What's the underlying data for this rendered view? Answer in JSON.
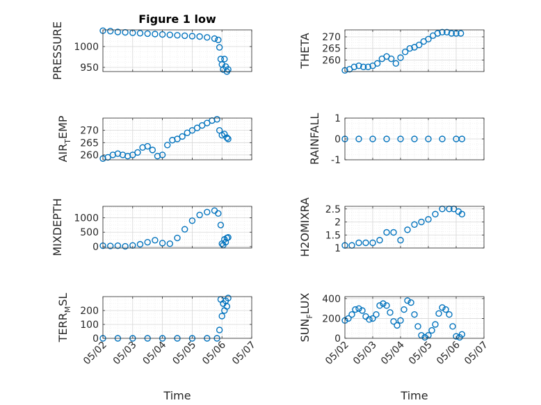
{
  "chart_data": [
    {
      "type": "scatter",
      "title": "Figure 1 low",
      "ylabel": "PRESSURE",
      "xlabel": "",
      "x_ticks": [
        "05/02",
        "05/03",
        "05/04",
        "05/05",
        "05/06",
        "05/07"
      ],
      "show_x_ticklabels": false,
      "xlim": [
        "05/02",
        "05/07"
      ],
      "ylim": [
        940,
        1040
      ],
      "y_ticks": [
        950,
        1000
      ],
      "grid": true,
      "series": [
        {
          "x": [
            "05/02 00:00",
            "05/02 06:00",
            "05/02 12:00",
            "05/02 18:00",
            "05/03 00:00",
            "05/03 06:00",
            "05/03 12:00",
            "05/03 18:00",
            "05/04 00:00",
            "05/04 06:00",
            "05/04 12:00",
            "05/04 18:00",
            "05/05 00:00",
            "05/05 06:00",
            "05/05 12:00",
            "05/05 18:00",
            "05/05 21:00",
            "05/05 22:00",
            "05/05 23:00",
            "05/06 00:00",
            "05/06 01:00",
            "05/06 02:00",
            "05/06 03:00",
            "05/06 04:00",
            "05/06 05:00"
          ],
          "y": [
            1038,
            1037,
            1035,
            1034,
            1033,
            1032,
            1031,
            1030,
            1029,
            1028,
            1027,
            1026,
            1025,
            1024,
            1022,
            1019,
            1016,
            998,
            970,
            957,
            945,
            970,
            952,
            940,
            945
          ]
        }
      ]
    },
    {
      "type": "scatter",
      "title": "",
      "ylabel": "THETA",
      "xlabel": "",
      "x_ticks": [
        "05/02",
        "05/03",
        "05/04",
        "05/05",
        "05/06",
        "05/07"
      ],
      "show_x_ticklabels": false,
      "xlim": [
        "05/02",
        "05/07"
      ],
      "ylim": [
        255,
        273
      ],
      "y_ticks": [
        260,
        265,
        270
      ],
      "grid": true,
      "series": [
        {
          "x": [
            "05/02 00:00",
            "05/02 04:00",
            "05/02 08:00",
            "05/02 12:00",
            "05/02 16:00",
            "05/02 20:00",
            "05/03 00:00",
            "05/03 04:00",
            "05/03 08:00",
            "05/03 12:00",
            "05/03 16:00",
            "05/03 20:00",
            "05/04 00:00",
            "05/04 04:00",
            "05/04 08:00",
            "05/04 12:00",
            "05/04 16:00",
            "05/04 20:00",
            "05/05 00:00",
            "05/05 04:00",
            "05/05 08:00",
            "05/05 12:00",
            "05/05 16:00",
            "05/05 20:00",
            "05/06 00:00",
            "05/06 04:00"
          ],
          "y": [
            255.5,
            256,
            257,
            257.5,
            257,
            257,
            257.5,
            258.5,
            260.5,
            261.5,
            260.5,
            258.5,
            261,
            263.5,
            265,
            265.5,
            266.5,
            268,
            269,
            270.5,
            271.5,
            272,
            272,
            271.5,
            271.5,
            271.5
          ]
        }
      ]
    },
    {
      "type": "scatter",
      "title": "",
      "ylabel": "AIR",
      "ylabel_sub": "T",
      "ylabel_rest": "EMP",
      "xlabel": "",
      "x_ticks": [
        "05/02",
        "05/03",
        "05/04",
        "05/05",
        "05/06",
        "05/07"
      ],
      "show_x_ticklabels": false,
      "xlim": [
        "05/02",
        "05/07"
      ],
      "ylim": [
        258,
        275
      ],
      "y_ticks": [
        260,
        265,
        270
      ],
      "grid": true,
      "series": [
        {
          "x": [
            "05/02 00:00",
            "05/02 04:00",
            "05/02 08:00",
            "05/02 12:00",
            "05/02 16:00",
            "05/02 20:00",
            "05/03 00:00",
            "05/03 04:00",
            "05/03 08:00",
            "05/03 12:00",
            "05/03 16:00",
            "05/03 20:00",
            "05/04 00:00",
            "05/04 04:00",
            "05/04 08:00",
            "05/04 12:00",
            "05/04 16:00",
            "05/04 20:00",
            "05/05 00:00",
            "05/05 04:00",
            "05/05 08:00",
            "05/05 12:00",
            "05/05 16:00",
            "05/05 20:00",
            "05/05 22:00",
            "05/06 00:00",
            "05/06 02:00",
            "05/06 04:00",
            "05/06 05:00"
          ],
          "y": [
            258.5,
            259,
            260,
            260.5,
            260,
            259.5,
            260,
            261,
            263,
            263.5,
            262,
            259.5,
            260,
            264,
            266,
            266.5,
            267.5,
            269,
            270,
            271,
            272,
            273,
            274,
            274.5,
            270,
            268,
            268.5,
            267,
            266.5
          ]
        }
      ]
    },
    {
      "type": "scatter",
      "title": "",
      "ylabel": "RAINFALL",
      "xlabel": "",
      "x_ticks": [
        "05/02",
        "05/03",
        "05/04",
        "05/05",
        "05/06",
        "05/07"
      ],
      "show_x_ticklabels": false,
      "xlim": [
        "05/02",
        "05/07"
      ],
      "ylim": [
        -1,
        1
      ],
      "y_ticks": [
        -1,
        0,
        1
      ],
      "grid": true,
      "series": [
        {
          "x": [
            "05/02 00:00",
            "05/02 12:00",
            "05/03 00:00",
            "05/03 12:00",
            "05/04 00:00",
            "05/04 12:00",
            "05/05 00:00",
            "05/05 12:00",
            "05/06 00:00",
            "05/06 05:00"
          ],
          "y": [
            0,
            0,
            0,
            0,
            0,
            0,
            0,
            0,
            0,
            0
          ]
        }
      ]
    },
    {
      "type": "scatter",
      "title": "",
      "ylabel": "MIXDEPTH",
      "xlabel": "",
      "x_ticks": [
        "05/02",
        "05/03",
        "05/04",
        "05/05",
        "05/06",
        "05/07"
      ],
      "show_x_ticklabels": false,
      "xlim": [
        "05/02",
        "05/07"
      ],
      "ylim": [
        -50,
        1400
      ],
      "y_ticks": [
        0,
        500,
        1000
      ],
      "grid": true,
      "series": [
        {
          "x": [
            "05/02 00:00",
            "05/02 06:00",
            "05/02 12:00",
            "05/02 18:00",
            "05/03 00:00",
            "05/03 06:00",
            "05/03 12:00",
            "05/03 18:00",
            "05/04 00:00",
            "05/04 06:00",
            "05/04 12:00",
            "05/04 18:00",
            "05/05 00:00",
            "05/05 06:00",
            "05/05 12:00",
            "05/05 18:00",
            "05/05 21:00",
            "05/05 23:00",
            "05/06 00:00",
            "05/06 01:00",
            "05/06 02:00",
            "05/06 03:00",
            "05/06 04:00",
            "05/06 05:00"
          ],
          "y": [
            30,
            20,
            30,
            10,
            40,
            80,
            150,
            220,
            120,
            100,
            300,
            600,
            900,
            1100,
            1200,
            1250,
            1150,
            750,
            100,
            50,
            250,
            150,
            300,
            320
          ]
        }
      ]
    },
    {
      "type": "scatter",
      "title": "",
      "ylabel": "H2OMIXRA",
      "xlabel": "",
      "x_ticks": [
        "05/02",
        "05/03",
        "05/04",
        "05/05",
        "05/06",
        "05/07"
      ],
      "show_x_ticklabels": false,
      "xlim": [
        "05/02",
        "05/07"
      ],
      "ylim": [
        1,
        2.6
      ],
      "y_ticks": [
        1,
        1.5,
        2,
        2.5
      ],
      "grid": true,
      "series": [
        {
          "x": [
            "05/02 00:00",
            "05/02 06:00",
            "05/02 12:00",
            "05/02 18:00",
            "05/03 00:00",
            "05/03 06:00",
            "05/03 12:00",
            "05/03 18:00",
            "05/04 00:00",
            "05/04 06:00",
            "05/04 12:00",
            "05/04 18:00",
            "05/05 00:00",
            "05/05 06:00",
            "05/05 12:00",
            "05/05 18:00",
            "05/05 22:00",
            "05/06 02:00",
            "05/06 05:00"
          ],
          "y": [
            1.1,
            1.1,
            1.2,
            1.2,
            1.2,
            1.3,
            1.6,
            1.6,
            1.3,
            1.7,
            1.9,
            2.0,
            2.1,
            2.3,
            2.5,
            2.5,
            2.5,
            2.4,
            2.3
          ]
        }
      ]
    },
    {
      "type": "scatter",
      "title": "",
      "ylabel": "TERR",
      "ylabel_sub": "M",
      "ylabel_rest": "SL",
      "xlabel": "Time",
      "x_ticks": [
        "05/02",
        "05/03",
        "05/04",
        "05/05",
        "05/06",
        "05/07"
      ],
      "show_x_ticklabels": true,
      "xlim": [
        "05/02",
        "05/07"
      ],
      "ylim": [
        0,
        300
      ],
      "y_ticks": [
        0,
        100,
        200
      ],
      "grid": true,
      "series": [
        {
          "x": [
            "05/02 00:00",
            "05/02 12:00",
            "05/03 00:00",
            "05/03 12:00",
            "05/04 00:00",
            "05/04 12:00",
            "05/05 00:00",
            "05/05 12:00",
            "05/05 20:00",
            "05/05 22:00",
            "05/05 23:00",
            "05/06 00:00",
            "05/06 01:00",
            "05/06 02:00",
            "05/06 03:00",
            "05/06 04:00",
            "05/06 05:00"
          ],
          "y": [
            0,
            0,
            0,
            0,
            0,
            0,
            0,
            0,
            0,
            60,
            280,
            160,
            250,
            200,
            270,
            230,
            290
          ]
        }
      ]
    },
    {
      "type": "scatter",
      "title": "",
      "ylabel": "SUN",
      "ylabel_sub": "F",
      "ylabel_rest": "LUX",
      "xlabel": "Time",
      "x_ticks": [
        "05/02",
        "05/03",
        "05/04",
        "05/05",
        "05/06",
        "05/07"
      ],
      "show_x_ticklabels": true,
      "xlim": [
        "05/02",
        "05/07"
      ],
      "ylim": [
        0,
        420
      ],
      "y_ticks": [
        0,
        200,
        400
      ],
      "grid": true,
      "series": [
        {
          "x": [
            "05/02 00:00",
            "05/02 03:00",
            "05/02 06:00",
            "05/02 09:00",
            "05/02 12:00",
            "05/02 15:00",
            "05/02 18:00",
            "05/02 21:00",
            "05/03 00:00",
            "05/03 03:00",
            "05/03 06:00",
            "05/03 09:00",
            "05/03 12:00",
            "05/03 15:00",
            "05/03 18:00",
            "05/03 21:00",
            "05/04 00:00",
            "05/04 03:00",
            "05/04 06:00",
            "05/04 09:00",
            "05/04 12:00",
            "05/04 15:00",
            "05/04 18:00",
            "05/04 21:00",
            "05/05 00:00",
            "05/05 03:00",
            "05/05 06:00",
            "05/05 09:00",
            "05/05 12:00",
            "05/05 15:00",
            "05/05 18:00",
            "05/05 21:00",
            "05/06 00:00",
            "05/06 03:00",
            "05/06 05:00"
          ],
          "y": [
            180,
            200,
            240,
            290,
            300,
            280,
            220,
            190,
            200,
            240,
            330,
            350,
            330,
            260,
            170,
            130,
            180,
            290,
            380,
            360,
            240,
            120,
            30,
            10,
            30,
            80,
            140,
            250,
            310,
            290,
            240,
            120,
            20,
            10,
            40
          ]
        }
      ]
    }
  ]
}
